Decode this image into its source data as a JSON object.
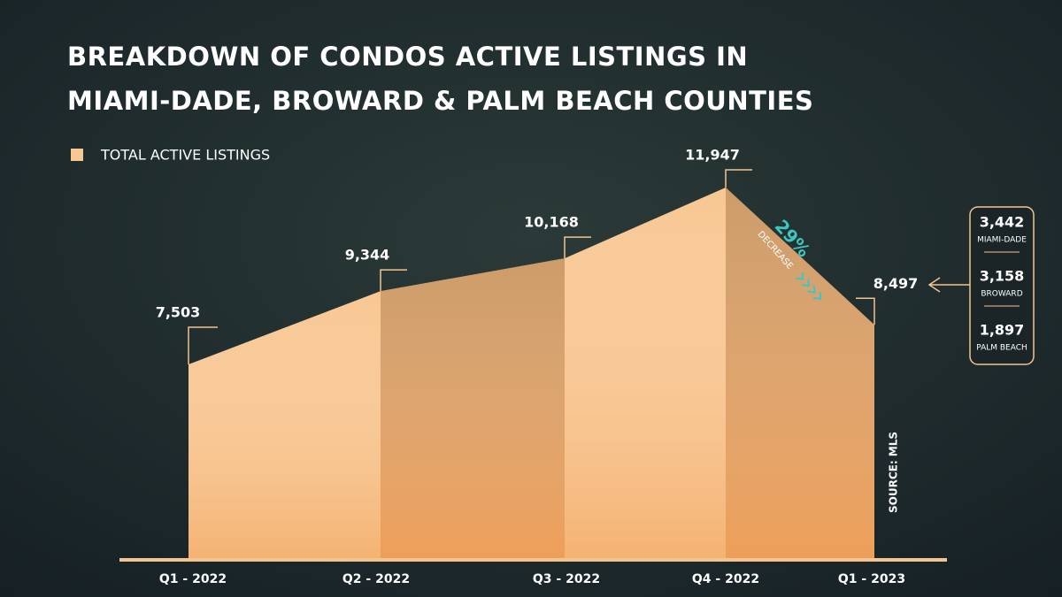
{
  "chart_data": {
    "type": "area",
    "title": [
      "BREAKDOWN OF CONDOS ACTIVE LISTINGS IN",
      "MIAMI-DADE, BROWARD & PALM BEACH COUNTIES"
    ],
    "legend": "TOTAL ACTIVE LISTINGS",
    "color": "#f8c792",
    "categories": [
      "Q1 - 2022",
      "Q2 - 2022",
      "Q3 - 2022",
      "Q4 - 2022",
      "Q1 - 2023"
    ],
    "values": [
      7503,
      9344,
      10168,
      11947,
      8497
    ],
    "value_labels": [
      "7,503",
      "9,344",
      "10,168",
      "11,947",
      "8,497"
    ],
    "annotation": {
      "value": "29%",
      "text": "DECREASE"
    },
    "breakdown": [
      {
        "name": "MIAMI-DADE",
        "value": 3442,
        "value_label": "3,442"
      },
      {
        "name": "BROWARD",
        "value": 3158,
        "value_label": "3,158"
      },
      {
        "name": "PALM BEACH",
        "value": 1897,
        "value_label": "1,897"
      }
    ],
    "source": "SOURCE: MLS"
  }
}
